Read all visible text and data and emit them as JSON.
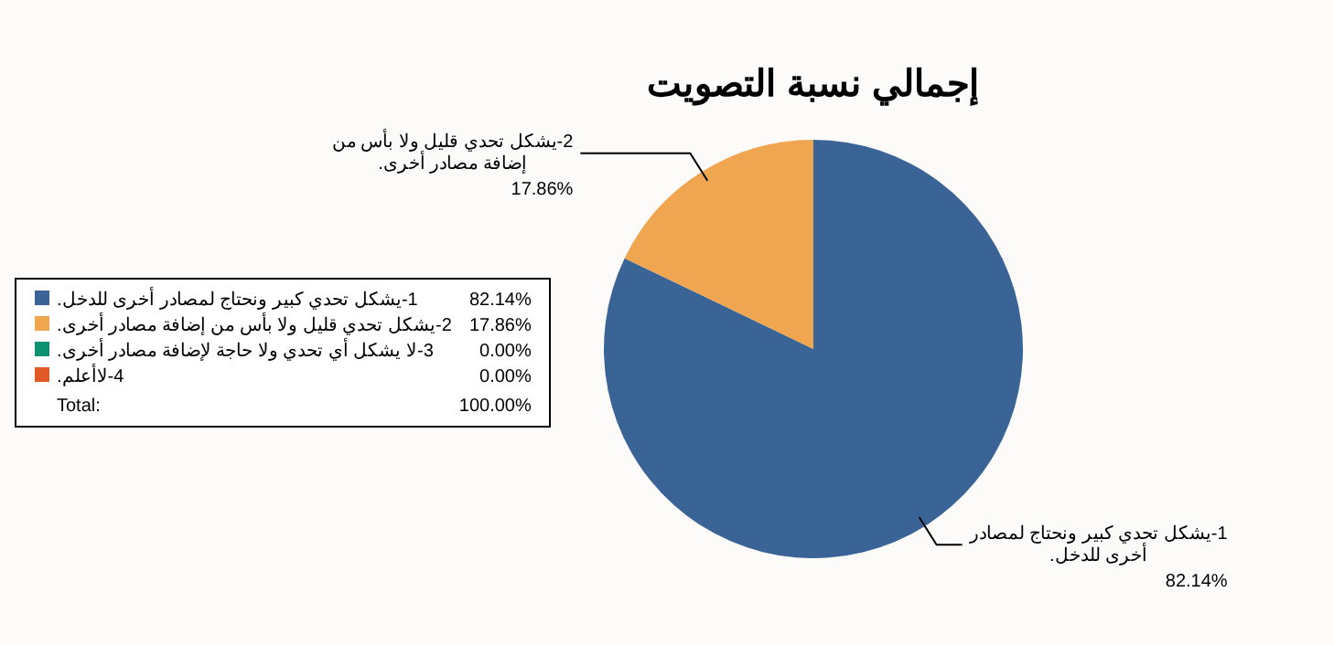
{
  "chart_data": {
    "type": "pie",
    "title": "إجمالي نسبة التصويت",
    "categories": [
      "1-يشكل تحدي كبير ونحتاج لمصادر أخرى للدخل.",
      "2-يشكل تحدي قليل ولا بأس من إضافة مصادر أخرى.",
      "3-لا يشكل أي تحدي ولا حاجة لإضافة مصادر أخرى.",
      "4-لاأعلم."
    ],
    "values": [
      82.14,
      17.86,
      0,
      0
    ],
    "value_labels": [
      "82.14%",
      "17.86%",
      "0.00%",
      "0.00%"
    ],
    "colors": [
      "#3a6496",
      "#f0a550",
      "#0e9170",
      "#e05a28"
    ],
    "legend": "left",
    "annotations": [
      "Total:",
      "100.00%"
    ]
  }
}
